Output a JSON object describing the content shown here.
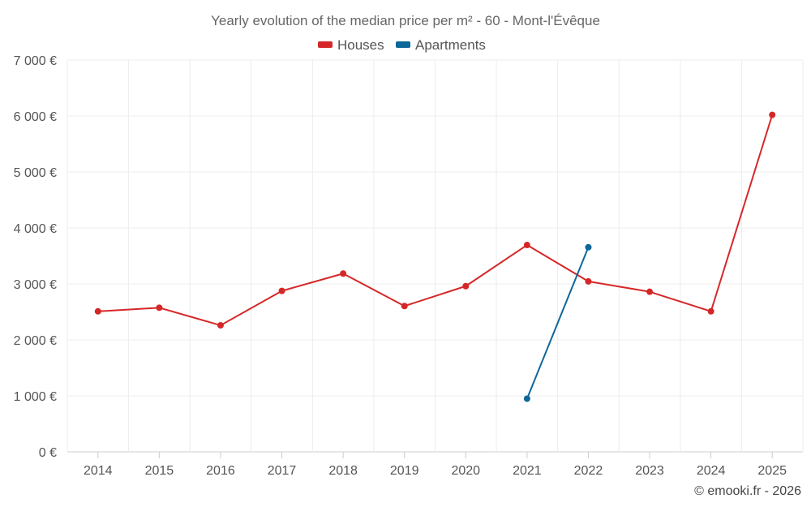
{
  "chart_data": {
    "type": "line",
    "title": "Yearly evolution of the median price per m² - 60 - Mont-l'Évêque",
    "categories": [
      "2014",
      "2015",
      "2016",
      "2017",
      "2018",
      "2019",
      "2020",
      "2021",
      "2022",
      "2023",
      "2024",
      "2025"
    ],
    "y_tick_labels": [
      "0 €",
      "1 000 €",
      "2 000 €",
      "3 000 €",
      "4 000 €",
      "5 000 €",
      "6 000 €",
      "7 000 €"
    ],
    "ylim": [
      0,
      7000
    ],
    "ytick_step": 1000,
    "grid": true,
    "legend_position": "top-center",
    "xlabel": "",
    "ylabel": "",
    "series": [
      {
        "name": "Houses",
        "color": "#d62728",
        "values": [
          2510,
          2575,
          2260,
          2875,
          3185,
          2605,
          2960,
          3695,
          3045,
          2860,
          2510,
          6020
        ]
      },
      {
        "name": "Apartments",
        "color": "#0d6799",
        "values": [
          null,
          null,
          null,
          null,
          null,
          null,
          null,
          950,
          3655,
          null,
          null,
          null
        ]
      }
    ]
  },
  "credit": "© emooki.fr - 2026"
}
